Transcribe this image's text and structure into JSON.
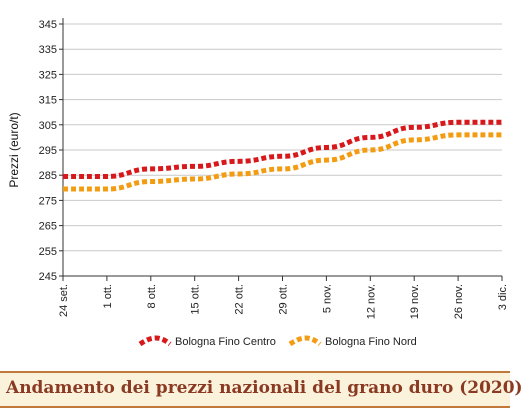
{
  "chart_data": {
    "type": "line",
    "title": "Andamento dei prezzi nazionali del grano duro (2020)",
    "ylabel": "Prezzi (euro/t)",
    "ylim": [
      245,
      345
    ],
    "yticks": [
      245,
      255,
      265,
      275,
      285,
      295,
      305,
      315,
      325,
      335,
      345
    ],
    "x": [
      "24 set.",
      "1 ott.",
      "8 ott.",
      "15 ott.",
      "22 ott.",
      "29 ott.",
      "5 nov.",
      "12 nov.",
      "19 nov.",
      "26 nov.",
      "3 dic."
    ],
    "grid": "horizontal",
    "legend_position": "bottom",
    "series": [
      {
        "name": "Bologna Fino Centro",
        "color": "#d7191c",
        "values": [
          284.5,
          284.5,
          287.5,
          288.5,
          290.5,
          292.5,
          296,
          300,
          304,
          306,
          306
        ]
      },
      {
        "name": "Bologna Fino Nord",
        "color": "#f39c12",
        "values": [
          279.5,
          279.5,
          282.5,
          283.5,
          285.5,
          287.5,
          291,
          295,
          299,
          301,
          301
        ]
      }
    ]
  }
}
